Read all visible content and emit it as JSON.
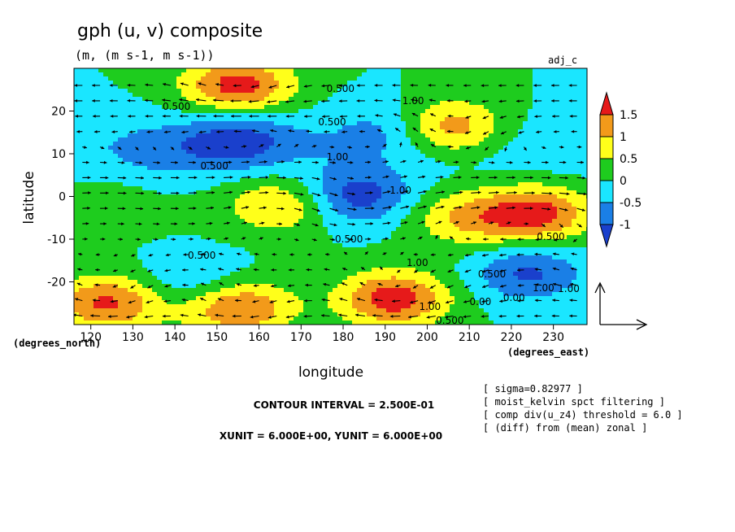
{
  "title": "gph (u, v) composite",
  "units_line": "(m, (m s-1, m s-1))",
  "corner_label": "adj_c",
  "xlabel": "longitude",
  "ylabel": "latitude",
  "x_unit_label": "(degrees_east)",
  "y_unit_label": "(degrees_north)",
  "contour_interval_text": "CONTOUR INTERVAL = 2.500E-01",
  "unit_vector_text": "XUNIT = 6.000E+00, YUNIT = 6.000E+00",
  "info_lines": [
    "[ sigma=0.82977 ]",
    "[ moist_kelvin spct filtering ]",
    "[ comp div(u_z4) threshold = 6.0 ]",
    "[ (diff) from (mean) zonal ]"
  ],
  "colorbar": {
    "labels": [
      "1.5",
      "1",
      "0.5",
      "0",
      "-0.5",
      "-1"
    ],
    "colors": [
      "#e61a1a",
      "#f29a1a",
      "#ffff1a",
      "#1ecc1e",
      "#1ae6ff",
      "#1a7fe6",
      "#1a40cc"
    ]
  },
  "chart_data": {
    "type": "heatmap",
    "subtype": "filled contour with wind vectors",
    "title": "gph (u, v) composite",
    "units": "(m, (m s-1, m s-1))",
    "xlabel": "longitude",
    "ylabel": "latitude",
    "xlim": [
      116,
      238
    ],
    "ylim": [
      -30,
      30
    ],
    "xticks": [
      120,
      130,
      140,
      150,
      160,
      170,
      180,
      190,
      200,
      210,
      220,
      230
    ],
    "yticks": [
      -20,
      -10,
      0,
      10,
      20
    ],
    "contour_interval": 0.25,
    "contour_labels": [
      "0.500",
      "1.00",
      "0.500",
      "1.00",
      "0.500",
      "0.500",
      "1.00",
      "0.500",
      "0.500",
      "0.500",
      "1.00",
      "0.500",
      "1.00",
      "0.00",
      "0.00",
      "1.00",
      "1.00",
      "1.00",
      "0.500"
    ],
    "levels": [
      -1.25,
      -1.0,
      -0.5,
      0,
      0.5,
      1.0,
      1.5
    ],
    "anomaly_centers": [
      {
        "lon": 155,
        "lat": 26,
        "value": 1.75
      },
      {
        "lon": 205,
        "lat": 16,
        "value": 1.6
      },
      {
        "lon": 226,
        "lat": -4,
        "value": 1.7
      },
      {
        "lon": 192,
        "lat": -24,
        "value": 1.8
      },
      {
        "lon": 124,
        "lat": -25,
        "value": 1.6
      },
      {
        "lon": 155,
        "lat": -26,
        "value": 1.6
      },
      {
        "lon": 165,
        "lat": -2,
        "value": 1.1
      },
      {
        "lon": 209,
        "lat": -5,
        "value": 1.0
      },
      {
        "lon": 183,
        "lat": 0,
        "value": -1.3
      },
      {
        "lon": 155,
        "lat": 13,
        "value": -1.0
      },
      {
        "lon": 224,
        "lat": -18,
        "value": -1.1
      },
      {
        "lon": 192,
        "lat": 16,
        "value": -0.6
      },
      {
        "lon": 145,
        "lat": -20,
        "value": -0.6
      },
      {
        "lon": 137,
        "lat": 10,
        "value": -0.4
      },
      {
        "lon": 124,
        "lat": -2,
        "value": 0.3
      }
    ]
  }
}
